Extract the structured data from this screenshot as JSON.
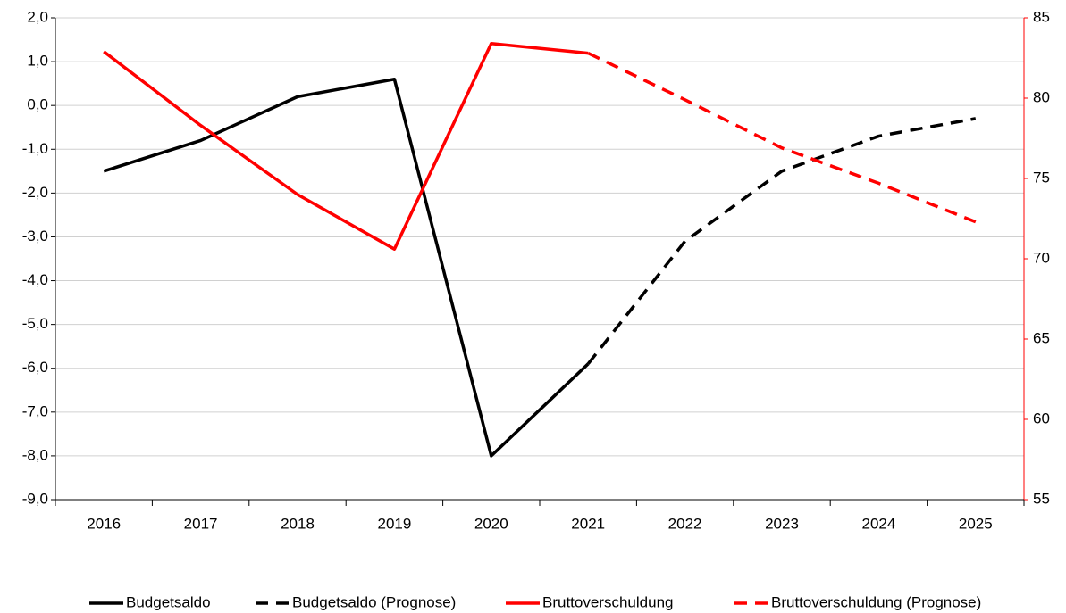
{
  "chart_data": {
    "type": "line",
    "categories": [
      "2016",
      "2017",
      "2018",
      "2019",
      "2020",
      "2021",
      "2022",
      "2023",
      "2024",
      "2025"
    ],
    "series": [
      {
        "name": "Budgetsaldo",
        "color": "#000000",
        "dashed": false,
        "values": [
          -1.5,
          -0.8,
          0.2,
          0.6,
          -8.0,
          -5.9,
          null,
          null,
          null,
          null
        ]
      },
      {
        "name": "Budgetsaldo (Prognose)",
        "color": "#000000",
        "dashed": true,
        "values": [
          null,
          null,
          null,
          null,
          null,
          -5.9,
          -3.1,
          -1.5,
          -0.7,
          -0.3
        ]
      },
      {
        "name": "Bruttoverschuldung",
        "color": "#ff0000",
        "dashed": false,
        "axis": "y2",
        "values": [
          82.9,
          78.3,
          74.0,
          70.6,
          83.4,
          82.8,
          null,
          null,
          null,
          null
        ]
      },
      {
        "name": "Bruttoverschuldung (Prognose)",
        "color": "#ff0000",
        "dashed": true,
        "axis": "y2",
        "values": [
          null,
          null,
          null,
          null,
          null,
          82.8,
          79.9,
          76.9,
          74.7,
          72.3
        ]
      }
    ],
    "ylim": [
      -9,
      2
    ],
    "yticks": [
      {
        "value": -9,
        "label": "-9,0"
      },
      {
        "value": -8,
        "label": "-8,0"
      },
      {
        "value": -7,
        "label": "-7,0"
      },
      {
        "value": -6,
        "label": "-6,0"
      },
      {
        "value": -5,
        "label": "-5,0"
      },
      {
        "value": -4,
        "label": "-4,0"
      },
      {
        "value": -3,
        "label": "-3,0"
      },
      {
        "value": -2,
        "label": "-2,0"
      },
      {
        "value": -1,
        "label": "-1,0"
      },
      {
        "value": 0,
        "label": "0,0"
      },
      {
        "value": 1,
        "label": "1,0"
      },
      {
        "value": 2,
        "label": "2,0"
      }
    ],
    "y2lim": [
      55,
      85
    ],
    "y2ticks": [
      55,
      60,
      65,
      70,
      75,
      80,
      85
    ],
    "y2color": "#ff0000",
    "grid": true,
    "legend": "bottom"
  }
}
